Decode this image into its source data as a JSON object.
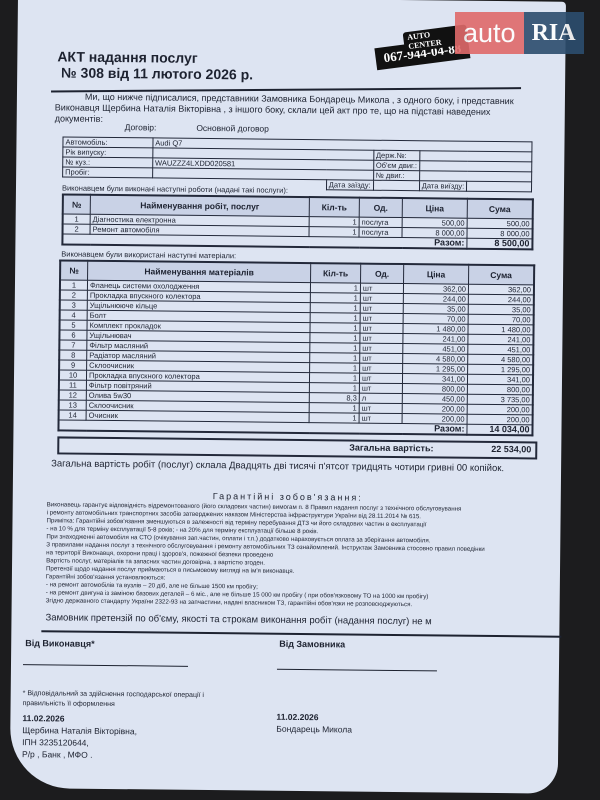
{
  "watermark": {
    "auto": "auto",
    "ria": "RIA"
  },
  "logo": {
    "name": "AUTO CENTER",
    "phone": "067-944-04-88"
  },
  "title": {
    "line1": "АКТ надання послуг",
    "line2": "№ 308 від 11 лютого 2026 р."
  },
  "intro": "Ми, що нижче підписалися, представники Замовника Бондарець Микола , з одного боку, і представник Виконавця Щербина Наталія Вікторівна , з іншого боку, склали цей акт про те, що на підставі наведених документів:",
  "contract": {
    "label": "Договір:",
    "value": "Основной договор"
  },
  "vehicle": {
    "car_label": "Автомобіль:",
    "car": "Audi Q7",
    "year_label": "Рік випуску:",
    "year": "",
    "body_label": "№ куз.:",
    "body": "WAUZZZ4LXDD020581",
    "plate_label": "Держ.№:",
    "plate": "",
    "mileage_label": "Пробіг:",
    "mileage": "",
    "engine_vol_label": "Об'єм двиг.:",
    "engine_vol": "",
    "engine_no_label": "№ двиг.:",
    "engine_no": "",
    "arrival_label": "Дата заїзду:",
    "exit_label": "Дата виїзду:"
  },
  "works": {
    "caption": "Виконавцем були виконані наступні роботи (надані такі послуги):",
    "headers": [
      "№",
      "Найменування робіт, послуг",
      "Кіл-ть",
      "Од.",
      "Ціна",
      "Сума"
    ],
    "rows": [
      [
        "1",
        "Діагностика електронна",
        "1",
        "послуга",
        "500,00",
        "500,00"
      ],
      [
        "2",
        "Ремонт  автомобіля",
        "1",
        "послуга",
        "8 000,00",
        "8 000,00"
      ]
    ],
    "total_label": "Разом:",
    "total": "8 500,00"
  },
  "materials": {
    "caption": "Виконавцем були використані наступні матеріали:",
    "headers": [
      "№",
      "Найменування матеріалів",
      "Кіл-ть",
      "Од.",
      "Ціна",
      "Сума"
    ],
    "rows": [
      [
        "1",
        "Фланець системи охолодження",
        "1",
        "шт",
        "362,00",
        "362,00"
      ],
      [
        "2",
        "Прокладка впускного колектора",
        "1",
        "шт",
        "244,00",
        "244,00"
      ],
      [
        "3",
        "Ущільнююче кільце",
        "1",
        "шт",
        "35,00",
        "35,00"
      ],
      [
        "4",
        "Болт",
        "1",
        "шт",
        "70,00",
        "70,00"
      ],
      [
        "5",
        "Комплект прокладок",
        "1",
        "шт",
        "1 480,00",
        "1 480,00"
      ],
      [
        "6",
        "Ущільнювач",
        "1",
        "шт",
        "241,00",
        "241,00"
      ],
      [
        "7",
        "Фільтр масляний",
        "1",
        "шт",
        "451,00",
        "451,00"
      ],
      [
        "8",
        "Радіатор масляний",
        "1",
        "шт",
        "4 580,00",
        "4 580,00"
      ],
      [
        "9",
        "Склоочисник",
        "1",
        "шт",
        "1 295,00",
        "1 295,00"
      ],
      [
        "10",
        "Прокладка впускного колектора",
        "1",
        "шт",
        "341,00",
        "341,00"
      ],
      [
        "11",
        "Фільтр повітряний",
        "1",
        "шт",
        "800,00",
        "800,00"
      ],
      [
        "12",
        "Олива 5w30",
        "8,3",
        "л",
        "450,00",
        "3 735,00"
      ],
      [
        "13",
        "Склоочисник",
        "1",
        "шт",
        "200,00",
        "200,00"
      ],
      [
        "14",
        "Очисник",
        "1",
        "шт",
        "200,00",
        "200,00"
      ]
    ],
    "total_label": "Разом:",
    "total": "14 034,00"
  },
  "grand": {
    "label": "Загальна вартість:",
    "value": "22 534,00"
  },
  "sum_text": "Загальна вартість робіт (послуг) склала Двадцять дві тисячі п'ятсот тридцять чотири гривні 00 копійок.",
  "warranty": {
    "heading": "Гарантійні зобов'язання:",
    "lines": [
      "Виконавець гарантує відповідність відремонтованого (його складових частин)  вимогам п. 8 Правил надання послуг з технічного  обслуговування",
      " і ремонту  автомобільних транспортних засобів затверджених наказом Міністерства інфраструктури України від 28.11.2014 № 615.",
      "Примітка: Гарантійні зобов'язання  зменшуються в залежності  від терміну перебування ДТЗ чи його складових частин в експлуатації",
      "  - на 10 % для терміну експлуатації 5-8 років; - на 20%  для терміну експлуатації більше 8 років.",
      "При  знаходженні автомобіля  на СТО (очікування зап.частин, оплати і т.п.) додатково нараховується оплата за зберігання автомобіля.",
      "З правилами надання послуг  з технічного обслуговування і ремонту автомобільних ТЗ ознайомлений. Інструктаж Замовника стосовно правил поведінки",
      "на території Виконавця, охорони праці і здоров'я, пожежної безпеки проведено",
      "Вартість послуг, матеріалів та запасних частин договірна, з вартістю згоден.",
      "Претензії щодо надання послуг приймаються в письмовому вигляді на ім'я виконавця.",
      "Гарантійні зобов'язання установлюються:",
      " -  на ремонт автомобілів та вузлів – 20 діб, але не більше 1500 км пробігу;",
      " -  на ремонт двигуна із заміною базових деталей – 6 міс., але не більше 15 000 км  пробігу ( при обов'язковому ТО на 1000 км пробігу)",
      "Згідно державного стандарту України 2322-93 на запчастини, надані власником ТЗ, гарантійні обов'язки не розповсюджуються."
    ]
  },
  "claim": "Замовник претензій по об'єму, якості та строкам виконання робіт (надання послуг) не м",
  "executor": {
    "label": "Від Виконавця*",
    "note1": "* Відповідальний за здійснення господарської операції і",
    "note2": "правильність її оформлення",
    "date": "11.02.2026",
    "name": "Щербина Наталія Вікторівна,",
    "ipn": "ІПН 3235120644,",
    "bank": "Р/р , Банк , МФО ."
  },
  "customer": {
    "label": "Від Замовника",
    "date": "11.02.2026",
    "name": "Бондарець Микола"
  }
}
